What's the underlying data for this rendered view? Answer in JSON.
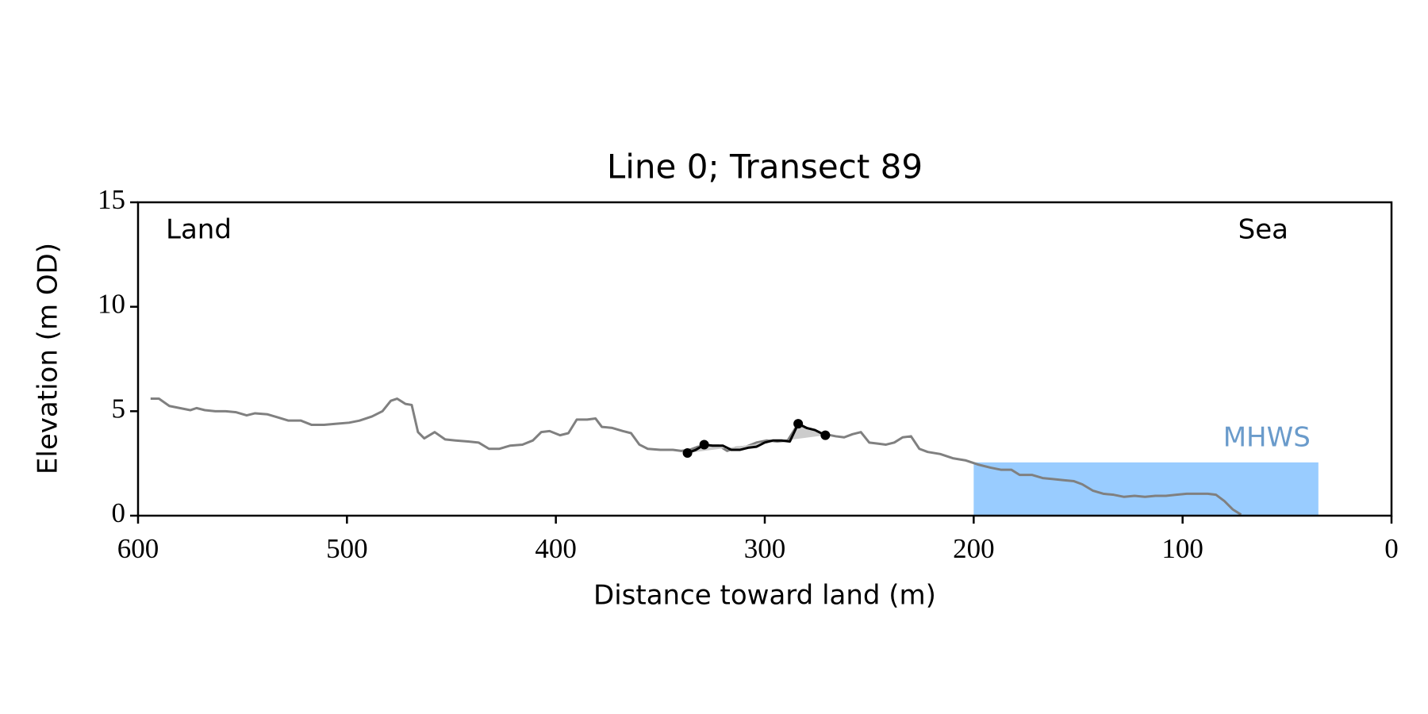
{
  "chart_data": {
    "type": "line",
    "title": "Line 0; Transect 89",
    "xlabel": "Distance toward land (m)",
    "ylabel": "Elevation (m OD)",
    "xlim": [
      600,
      0
    ],
    "ylim": [
      0,
      15
    ],
    "xticks": [
      600,
      500,
      400,
      300,
      200,
      100,
      0
    ],
    "yticks": [
      0,
      5,
      10,
      15
    ],
    "annotations": {
      "left": "Land",
      "right": "Sea"
    },
    "mhws": {
      "label": "MHWS",
      "level": 2.55,
      "x": [
        200,
        35
      ],
      "color": "#99ccff",
      "label_color": "#6a9bcb"
    },
    "series": [
      {
        "color": "#808080",
        "x": [
          594,
          590,
          585,
          580,
          575,
          572,
          568,
          563,
          558,
          553,
          548,
          544,
          538,
          533,
          528,
          522,
          517,
          511,
          505,
          499,
          494,
          488,
          483,
          479,
          476,
          472,
          469,
          466,
          463,
          458,
          453,
          448,
          442,
          437,
          432,
          427,
          422,
          416,
          411,
          407,
          403,
          398,
          394,
          390,
          385,
          381,
          378,
          373,
          368,
          364,
          360,
          356,
          350,
          344,
          340,
          336,
          332,
          327,
          322,
          318,
          314,
          309,
          304,
          299,
          294,
          289,
          284,
          280,
          275,
          271,
          266,
          262,
          258,
          254,
          250,
          246,
          242,
          238,
          234,
          230,
          226,
          222,
          216,
          210,
          204,
          198,
          192,
          187,
          182,
          178,
          172,
          167,
          162,
          157,
          152,
          148,
          143,
          138,
          133,
          128,
          123,
          118,
          113,
          108,
          103,
          98,
          93,
          88,
          84,
          80,
          76,
          72
        ],
        "values": [
          5.6,
          5.6,
          5.25,
          5.15,
          5.05,
          5.15,
          5.05,
          5.0,
          5.0,
          4.95,
          4.8,
          4.9,
          4.85,
          4.7,
          4.55,
          4.55,
          4.35,
          4.35,
          4.4,
          4.45,
          4.55,
          4.75,
          5.0,
          5.5,
          5.6,
          5.35,
          5.3,
          4.0,
          3.7,
          4.0,
          3.65,
          3.6,
          3.55,
          3.5,
          3.2,
          3.2,
          3.35,
          3.4,
          3.6,
          4.0,
          4.05,
          3.85,
          3.95,
          4.6,
          4.6,
          4.65,
          4.25,
          4.2,
          4.05,
          3.95,
          3.4,
          3.2,
          3.15,
          3.15,
          3.1,
          3.15,
          3.3,
          3.35,
          3.35,
          3.1,
          3.25,
          3.3,
          3.5,
          3.6,
          3.55,
          3.6,
          4.4,
          4.2,
          4.0,
          3.9,
          3.8,
          3.75,
          3.9,
          4.0,
          3.5,
          3.45,
          3.4,
          3.5,
          3.75,
          3.8,
          3.2,
          3.05,
          2.95,
          2.75,
          2.65,
          2.45,
          2.3,
          2.2,
          2.2,
          1.95,
          1.95,
          1.8,
          1.75,
          1.7,
          1.65,
          1.5,
          1.2,
          1.05,
          1.0,
          0.9,
          0.95,
          0.9,
          0.95,
          0.95,
          1.0,
          1.05,
          1.05,
          1.05,
          1.0,
          0.7,
          0.3,
          0.05
        ]
      },
      {
        "color": "#000000",
        "shade": "#cccccc",
        "x": [
          337,
          333,
          329,
          325,
          320,
          316,
          312,
          308,
          304,
          300,
          296,
          292,
          288,
          284,
          280,
          276,
          271
        ],
        "values": [
          3.0,
          3.15,
          3.4,
          3.35,
          3.35,
          3.15,
          3.15,
          3.25,
          3.3,
          3.5,
          3.6,
          3.6,
          3.55,
          4.4,
          4.2,
          4.1,
          3.85
        ],
        "markers": [
          0,
          2,
          13,
          16
        ]
      }
    ]
  }
}
